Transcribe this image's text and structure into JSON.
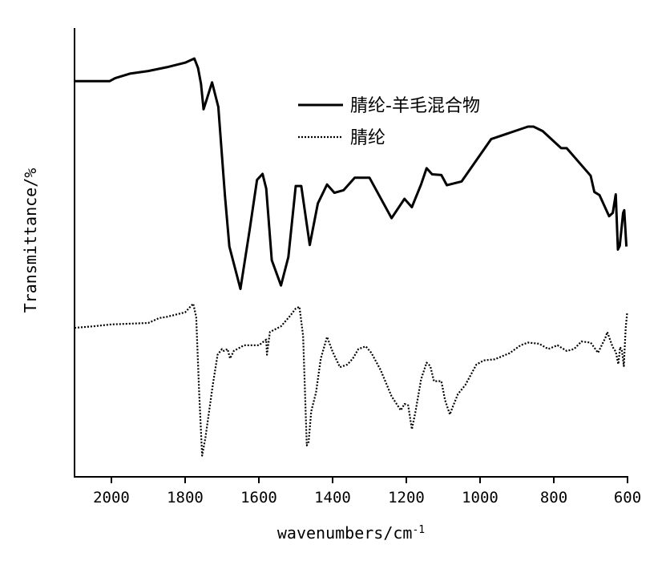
{
  "chart_data": {
    "type": "line",
    "title": "",
    "xlabel": "wavenumbers/cm",
    "xlabel_superscript": "-1",
    "ylabel": "Transmittance/%",
    "xlim": [
      2100,
      600
    ],
    "x_reversed": true,
    "ylim": [
      0,
      100
    ],
    "y_ticks_shown": false,
    "grid": false,
    "x_ticks": [
      2000,
      1800,
      1600,
      1400,
      1200,
      1000,
      800,
      600
    ],
    "legend": {
      "placement": "top-right"
    },
    "series": [
      {
        "name": "腈纶-羊毛混合物",
        "style": "solid",
        "color": "#000000",
        "points": [
          [
            2100,
            92.3
          ],
          [
            2005,
            92.3
          ],
          [
            1990,
            93.1
          ],
          [
            1950,
            94.3
          ],
          [
            1900,
            95.0
          ],
          [
            1850,
            96.0
          ],
          [
            1800,
            97.2
          ],
          [
            1775,
            98.3
          ],
          [
            1765,
            95.8
          ],
          [
            1757,
            91.6
          ],
          [
            1750,
            84.9
          ],
          [
            1745,
            86.4
          ],
          [
            1727,
            92.0
          ],
          [
            1710,
            85.5
          ],
          [
            1692,
            62.0
          ],
          [
            1680,
            48.6
          ],
          [
            1650,
            37.4
          ],
          [
            1625,
            53.0
          ],
          [
            1605,
            66.2
          ],
          [
            1590,
            67.8
          ],
          [
            1580,
            63.9
          ],
          [
            1565,
            45.0
          ],
          [
            1540,
            38.3
          ],
          [
            1520,
            45.8
          ],
          [
            1500,
            64.6
          ],
          [
            1485,
            64.6
          ],
          [
            1462,
            49.0
          ],
          [
            1440,
            60.0
          ],
          [
            1415,
            65.0
          ],
          [
            1395,
            62.8
          ],
          [
            1370,
            63.5
          ],
          [
            1340,
            66.8
          ],
          [
            1300,
            66.8
          ],
          [
            1240,
            56.1
          ],
          [
            1205,
            61.2
          ],
          [
            1185,
            59.0
          ],
          [
            1160,
            65.0
          ],
          [
            1145,
            69.3
          ],
          [
            1130,
            67.7
          ],
          [
            1105,
            67.5
          ],
          [
            1090,
            64.8
          ],
          [
            1050,
            65.8
          ],
          [
            970,
            77.0
          ],
          [
            870,
            80.3
          ],
          [
            855,
            80.3
          ],
          [
            830,
            79.1
          ],
          [
            780,
            74.6
          ],
          [
            765,
            74.6
          ],
          [
            700,
            67.3
          ],
          [
            690,
            63.0
          ],
          [
            676,
            62.2
          ],
          [
            650,
            56.6
          ],
          [
            640,
            57.5
          ],
          [
            632,
            62.4
          ],
          [
            626,
            47.8
          ],
          [
            621,
            48.8
          ],
          [
            612,
            57.5
          ],
          [
            609,
            58.2
          ],
          [
            603,
            48.6
          ]
        ]
      },
      {
        "name": "腈纶",
        "style": "dotted",
        "color": "#000000",
        "points": [
          [
            2100,
            27.1
          ],
          [
            2050,
            27.5
          ],
          [
            2000,
            28.0
          ],
          [
            1950,
            28.2
          ],
          [
            1900,
            28.4
          ],
          [
            1870,
            29.7
          ],
          [
            1850,
            30.0
          ],
          [
            1800,
            31.2
          ],
          [
            1778,
            33.5
          ],
          [
            1770,
            30.0
          ],
          [
            1762,
            10.0
          ],
          [
            1754,
            -6.7
          ],
          [
            1745,
            -2.0
          ],
          [
            1735,
            5.0
          ],
          [
            1725,
            12.0
          ],
          [
            1712,
            20.0
          ],
          [
            1700,
            21.5
          ],
          [
            1695,
            21.0
          ],
          [
            1685,
            21.5
          ],
          [
            1678,
            19.0
          ],
          [
            1668,
            21.0
          ],
          [
            1640,
            22.5
          ],
          [
            1600,
            22.5
          ],
          [
            1580,
            24.0
          ],
          [
            1578,
            20.0
          ],
          [
            1570,
            26.0
          ],
          [
            1540,
            27.5
          ],
          [
            1515,
            30.3
          ],
          [
            1500,
            32.2
          ],
          [
            1490,
            32.7
          ],
          [
            1480,
            25.0
          ],
          [
            1470,
            -4.0
          ],
          [
            1465,
            -3.0
          ],
          [
            1458,
            5.0
          ],
          [
            1445,
            10.0
          ],
          [
            1432,
            19.0
          ],
          [
            1415,
            24.7
          ],
          [
            1400,
            20.8
          ],
          [
            1380,
            16.7
          ],
          [
            1360,
            17.4
          ],
          [
            1345,
            19.0
          ],
          [
            1330,
            21.5
          ],
          [
            1310,
            22.2
          ],
          [
            1295,
            20.5
          ],
          [
            1270,
            16.0
          ],
          [
            1240,
            9.0
          ],
          [
            1215,
            5.3
          ],
          [
            1205,
            7.0
          ],
          [
            1195,
            6.6
          ],
          [
            1185,
            0.3
          ],
          [
            1175,
            5.0
          ],
          [
            1160,
            13.5
          ],
          [
            1145,
            17.9
          ],
          [
            1135,
            17.0
          ],
          [
            1125,
            13.0
          ],
          [
            1105,
            13.0
          ],
          [
            1095,
            8.0
          ],
          [
            1082,
            4.2
          ],
          [
            1075,
            6.0
          ],
          [
            1060,
            9.6
          ],
          [
            1040,
            12.0
          ],
          [
            1010,
            17.4
          ],
          [
            990,
            18.5
          ],
          [
            960,
            18.8
          ],
          [
            920,
            20.4
          ],
          [
            890,
            22.5
          ],
          [
            870,
            23.2
          ],
          [
            840,
            22.9
          ],
          [
            815,
            21.5
          ],
          [
            790,
            22.5
          ],
          [
            765,
            21.0
          ],
          [
            745,
            21.5
          ],
          [
            725,
            23.5
          ],
          [
            700,
            23.2
          ],
          [
            680,
            20.5
          ],
          [
            660,
            24.5
          ],
          [
            655,
            26.0
          ],
          [
            640,
            22.0
          ],
          [
            632,
            20.8
          ],
          [
            625,
            17.5
          ],
          [
            620,
            22.0
          ],
          [
            615,
            21.0
          ],
          [
            610,
            17.0
          ],
          [
            605,
            27.0
          ],
          [
            601,
            31.0
          ]
        ]
      }
    ]
  }
}
